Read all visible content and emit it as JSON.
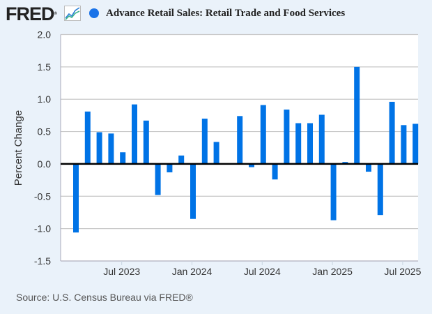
{
  "header": {
    "logo_text": "FRED",
    "logo_reg": "®",
    "logo_icon": "line-chart-icon",
    "series_title": "Advance Retail Sales: Retail Trade and Food Services",
    "series_color": "#0073e6"
  },
  "footer": {
    "source": "Source: U.S. Census Bureau via FRED®"
  },
  "chart_data": {
    "type": "bar",
    "title": "Advance Retail Sales: Retail Trade and Food Services",
    "xlabel": "",
    "ylabel": "Percent Change",
    "ylim": [
      -1.5,
      2.0
    ],
    "yticks": [
      2.0,
      1.5,
      1.0,
      0.5,
      0.0,
      -0.5,
      -1.0,
      -1.5
    ],
    "ytick_labels": [
      "2.0",
      "1.5",
      "1.0",
      "0.5",
      "0.0",
      "-0.5",
      "-1.0",
      "-1.5"
    ],
    "xtick_labels": [
      "Jul 2023",
      "Jan 2024",
      "Jul 2024",
      "Jan 2025",
      "Jul 2025"
    ],
    "xtick_categories": [
      "2023-07",
      "2024-01",
      "2024-07",
      "2025-01",
      "2025-07"
    ],
    "grid": true,
    "legend": "top-left",
    "bar_color": "#0073e6",
    "categories": [
      "2023-03",
      "2023-04",
      "2023-05",
      "2023-06",
      "2023-07",
      "2023-08",
      "2023-09",
      "2023-10",
      "2023-11",
      "2023-12",
      "2024-01",
      "2024-02",
      "2024-03",
      "2024-04",
      "2024-05",
      "2024-06",
      "2024-07",
      "2024-08",
      "2024-09",
      "2024-10",
      "2024-11",
      "2024-12",
      "2025-01",
      "2025-02",
      "2025-03",
      "2025-04",
      "2025-05",
      "2025-06",
      "2025-07",
      "2025-08"
    ],
    "series": [
      {
        "name": "Advance Retail Sales: Retail Trade and Food Services",
        "values": [
          -1.06,
          0.81,
          0.49,
          0.47,
          0.18,
          0.92,
          0.67,
          -0.48,
          -0.13,
          0.13,
          -0.85,
          0.7,
          0.34,
          0.0,
          0.74,
          -0.05,
          0.91,
          -0.24,
          0.84,
          0.63,
          0.63,
          0.76,
          -0.87,
          0.03,
          1.5,
          -0.12,
          -0.79,
          0.96,
          0.6,
          0.62
        ]
      }
    ]
  }
}
